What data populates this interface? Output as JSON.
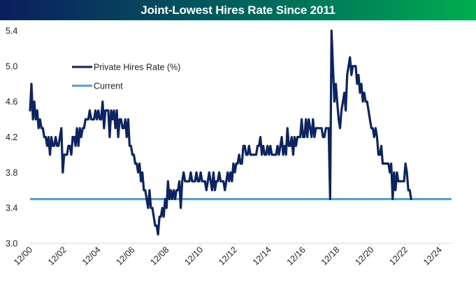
{
  "chart_data": {
    "type": "line",
    "title": "Joint-Lowest Hires Rate Since 2011",
    "xlabel": "",
    "ylabel": "",
    "ylim": [
      3.0,
      5.4
    ],
    "yticks": [
      "3.0",
      "3.4",
      "3.8",
      "4.2",
      "4.6",
      "5.0",
      "5.4"
    ],
    "ytick_values": [
      3.0,
      3.4,
      3.8,
      4.2,
      4.6,
      5.0,
      5.4
    ],
    "xticks": [
      "12/00",
      "12/02",
      "12/04",
      "12/06",
      "12/08",
      "12/10",
      "12/12",
      "12/14",
      "12/16",
      "12/18",
      "12/20",
      "12/22",
      "12/24"
    ],
    "x_start": "12/00",
    "x_end": "11/24",
    "grid": false,
    "legend_position": "top-left",
    "series": [
      {
        "name": "Private Hires Rate (%)",
        "color": "#0c2461",
        "frequency": "monthly",
        "start": "12/00",
        "values": [
          4.5,
          4.8,
          4.4,
          4.6,
          4.4,
          4.5,
          4.3,
          4.4,
          4.3,
          4.3,
          4.2,
          4.2,
          4.1,
          4.2,
          4.0,
          4.2,
          4.1,
          4.1,
          4.2,
          4.1,
          4.1,
          4.2,
          4.3,
          3.8,
          4.0,
          4.0,
          4.0,
          4.1,
          4.1,
          4.0,
          4.2,
          4.2,
          4.1,
          4.3,
          4.1,
          4.3,
          4.2,
          4.3,
          4.3,
          4.4,
          4.4,
          4.4,
          4.5,
          4.4,
          4.4,
          4.4,
          4.5,
          4.4,
          4.5,
          4.4,
          4.4,
          4.6,
          4.3,
          4.5,
          4.5,
          4.5,
          4.2,
          4.5,
          4.4,
          4.5,
          4.3,
          4.5,
          4.2,
          4.4,
          4.4,
          4.3,
          4.3,
          4.4,
          4.2,
          4.4,
          4.1,
          4.1,
          4.0,
          4.0,
          3.9,
          3.9,
          3.8,
          3.9,
          3.7,
          3.8,
          3.6,
          3.6,
          3.5,
          3.4,
          3.6,
          3.4,
          3.4,
          3.3,
          3.2,
          3.2,
          3.1,
          3.3,
          3.3,
          3.4,
          3.3,
          3.5,
          3.4,
          3.7,
          3.5,
          3.6,
          3.5,
          3.6,
          3.5,
          3.6,
          3.6,
          3.7,
          3.4,
          3.7,
          3.8,
          3.7,
          3.7,
          3.7,
          3.7,
          3.8,
          3.7,
          3.7,
          3.7,
          3.8,
          3.7,
          3.7,
          3.8,
          3.7,
          3.7,
          3.7,
          3.6,
          3.7,
          3.8,
          3.7,
          3.6,
          3.8,
          3.6,
          3.7,
          3.7,
          3.8,
          3.7,
          3.7,
          3.7,
          3.6,
          3.7,
          3.8,
          3.7,
          3.8,
          3.7,
          3.9,
          3.8,
          3.9,
          3.9,
          4.0,
          3.9,
          3.9,
          4.1,
          4.1,
          4.0,
          4.0,
          4.1,
          4.0,
          4.0,
          4.0,
          4.0,
          4.0,
          4.1,
          4.1,
          4.2,
          4.0,
          4.1,
          4.0,
          4.0,
          4.1,
          4.0,
          4.1,
          4.0,
          4.0,
          4.0,
          4.0,
          4.1,
          4.0,
          4.1,
          4.2,
          4.0,
          4.1,
          4.0,
          4.3,
          4.1,
          4.1,
          4.2,
          4.0,
          4.2,
          4.1,
          4.2,
          4.2,
          4.2,
          4.4,
          4.2,
          4.2,
          4.4,
          4.2,
          4.4,
          4.3,
          4.2,
          4.4,
          4.2,
          4.3,
          4.3,
          4.3,
          4.3,
          4.3,
          4.2,
          4.2,
          4.3,
          4.3,
          4.3,
          3.5,
          5.5,
          5.0,
          4.6,
          4.8,
          4.6,
          4.4,
          4.3,
          4.5,
          4.6,
          4.7,
          4.5,
          4.9,
          5.0,
          5.1,
          4.9,
          5.0,
          5.0,
          5.0,
          4.8,
          4.9,
          4.7,
          4.8,
          4.6,
          4.7,
          4.6,
          4.6,
          4.5,
          4.4,
          4.3,
          4.3,
          4.2,
          4.3,
          4.2,
          4.0,
          4.0,
          4.1,
          3.9,
          3.9,
          3.9,
          3.9,
          3.9,
          3.8,
          3.9,
          3.5,
          3.8,
          3.6,
          3.8,
          3.7,
          3.7,
          3.7,
          3.7,
          3.7,
          3.9,
          3.8,
          3.6,
          3.6,
          3.5
        ]
      },
      {
        "name": "Current",
        "color": "#5b9bd5",
        "constant_value": 3.5
      }
    ]
  }
}
